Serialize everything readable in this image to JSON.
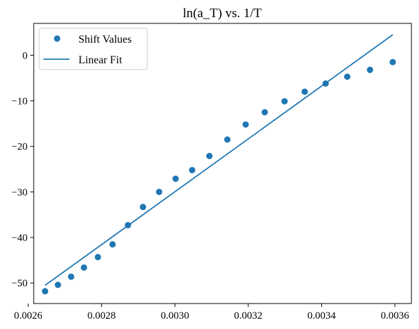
{
  "chart_data": {
    "type": "scatter",
    "title": "ln(a_T) vs. 1/T",
    "xlabel": "",
    "ylabel": "",
    "xlim": [
      0.002615,
      0.003645
    ],
    "ylim": [
      -54.5,
      7.0
    ],
    "x_ticks": [
      0.0026,
      0.0028,
      0.003,
      0.0032,
      0.0034,
      0.0036
    ],
    "x_tick_labels": [
      "0.0026",
      "0.0028",
      "0.0030",
      "0.0032",
      "0.0034",
      "0.0036"
    ],
    "y_ticks": [
      -50,
      -40,
      -30,
      -20,
      -10,
      0
    ],
    "y_tick_labels": [
      "−50",
      "−40",
      "−30",
      "−20",
      "−10",
      "0"
    ],
    "grid": false,
    "legend_position": "top-left",
    "color": "#1f77b4",
    "series": [
      {
        "name": "Shift Values",
        "kind": "scatter",
        "x": [
          0.002646,
          0.002681,
          0.002717,
          0.002752,
          0.00279,
          0.00283,
          0.002872,
          0.002913,
          0.002957,
          0.003002,
          0.003047,
          0.003094,
          0.003143,
          0.003193,
          0.003245,
          0.003299,
          0.003354,
          0.003411,
          0.00347,
          0.003532,
          0.003594
        ],
        "y": [
          -51.8,
          -50.4,
          -48.6,
          -46.6,
          -44.3,
          -41.5,
          -37.3,
          -33.3,
          -30.0,
          -27.1,
          -25.2,
          -22.1,
          -18.5,
          -15.2,
          -12.5,
          -10.1,
          -8.0,
          -6.2,
          -4.7,
          -3.2,
          -1.5
        ]
      },
      {
        "name": "Linear Fit",
        "kind": "line",
        "x": [
          0.002646,
          0.003594
        ],
        "y": [
          -50.5,
          4.5
        ]
      }
    ]
  }
}
